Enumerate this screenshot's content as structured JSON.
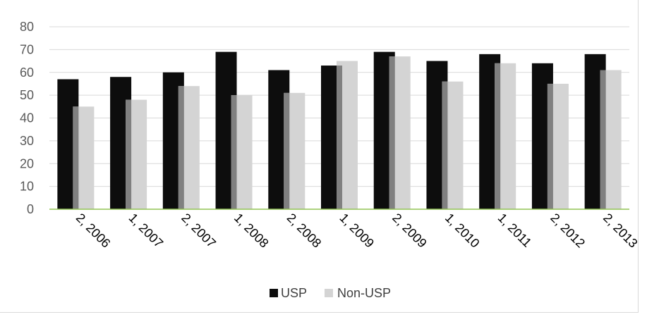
{
  "chart_data": {
    "type": "bar",
    "categories": [
      "2, 2006",
      "1, 2007",
      "2, 2007",
      "1, 2008",
      "2, 2008",
      "1, 2009",
      "2, 2009",
      "1, 2010",
      "1, 2011",
      "2, 2012",
      "2, 2013"
    ],
    "series": [
      {
        "name": "USP",
        "values": [
          57,
          58,
          60,
          69,
          61,
          63,
          69,
          65,
          68,
          64,
          68
        ]
      },
      {
        "name": "Non-USP",
        "values": [
          45,
          48,
          54,
          50,
          51,
          65,
          67,
          56,
          64,
          55,
          61
        ]
      }
    ],
    "yticks": [
      "0",
      "10",
      "20",
      "30",
      "40",
      "50",
      "60",
      "70",
      "80"
    ],
    "ylim": [
      0,
      80
    ],
    "grid": true,
    "legend": "bottom-center",
    "colors": {
      "USP": "#0d0d0d",
      "Non-USP": "#d4d4d4",
      "overlap": "#808080",
      "grid": "#d9d9d9",
      "x_axis": "#92c353"
    }
  }
}
